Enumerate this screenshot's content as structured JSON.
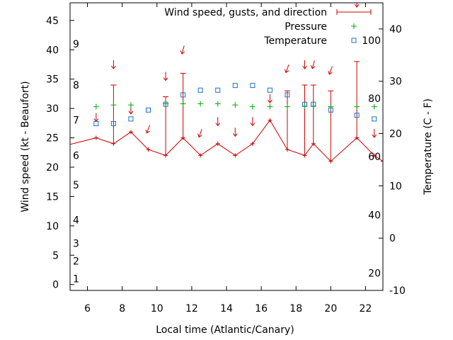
{
  "chart_data": {
    "type": "line",
    "xlabel": "Local time (Atlantic/Canary)",
    "ylabel": "Wind speed (kt - Beaufort)",
    "y2label": "Temperature (C - F)",
    "xlim": [
      5,
      23
    ],
    "ylim": [
      -1,
      48
    ],
    "y2lim": [
      -10,
      45
    ],
    "x_ticks": [
      6,
      8,
      10,
      12,
      14,
      16,
      18,
      20,
      22
    ],
    "y_ticks": [
      0,
      5,
      10,
      15,
      20,
      25,
      30,
      35,
      40,
      45
    ],
    "y2_ticks": [
      -10,
      0,
      10,
      20,
      30,
      40
    ],
    "beaufort_labels": [
      {
        "label": "1",
        "y": 1
      },
      {
        "label": "2",
        "y": 4
      },
      {
        "label": "3",
        "y": 7
      },
      {
        "label": "4",
        "y": 11
      },
      {
        "label": "5",
        "y": 17
      },
      {
        "label": "6",
        "y": 22
      },
      {
        "label": "7",
        "y": 28
      },
      {
        "label": "8",
        "y": 34
      },
      {
        "label": "9",
        "y": 41
      }
    ],
    "fahrenheit_labels": [
      {
        "label": "20",
        "c": -6.7
      },
      {
        "label": "40",
        "c": 4.4
      },
      {
        "label": "60",
        "c": 15.6
      },
      {
        "label": "80",
        "c": 26.7
      },
      {
        "label": "100",
        "c": 37.8
      }
    ],
    "legend": {
      "position": "top-right",
      "wind": "Wind speed, gusts, and direction",
      "pressure": "Pressure",
      "temperature": "Temperature"
    },
    "colors": {
      "wind": "#cc0000",
      "pressure": "#00aa00",
      "temperature": "#1e6ec8",
      "axis": "#000000"
    },
    "wind": {
      "x": [
        4.5,
        6.5,
        7.5,
        8.5,
        9.5,
        10.5,
        11.5,
        12.5,
        13.5,
        14.5,
        15.5,
        16.5,
        17.5,
        18.5,
        19,
        20,
        21.5,
        22.5,
        23
      ],
      "speed": [
        23.5,
        25,
        24,
        26,
        23,
        22,
        25,
        22,
        24,
        22,
        24,
        28,
        23,
        22,
        24,
        21,
        25,
        22,
        21
      ],
      "gust": [
        null,
        null,
        34,
        null,
        null,
        32,
        36,
        null,
        null,
        null,
        null,
        null,
        33,
        34,
        34,
        33,
        38,
        null,
        null
      ],
      "arrow_y": [
        null,
        28.5,
        37.5,
        29.8,
        26.5,
        35.5,
        40,
        25.8,
        27.8,
        26,
        27.8,
        31.7,
        36.8,
        37.5,
        37.5,
        36.5,
        48,
        25.8,
        null
      ],
      "arrow_dir": [
        null,
        0,
        0,
        0,
        20,
        0,
        15,
        20,
        0,
        0,
        0,
        0,
        20,
        0,
        15,
        20,
        0,
        0,
        null
      ]
    },
    "pressure": {
      "x": [
        6.5,
        7.5,
        8.5,
        10.5,
        11.5,
        12.5,
        13.5,
        14.5,
        15.5,
        16.5,
        17.5,
        18.5,
        19,
        20,
        21.5,
        22.5
      ],
      "y": [
        30.3,
        30.6,
        30.6,
        30.8,
        30.8,
        30.8,
        30.8,
        30.6,
        30.3,
        30.3,
        30.3,
        30.4,
        30.4,
        30.3,
        30.3,
        30.3
      ]
    },
    "temperature": {
      "x": [
        6.5,
        7.5,
        8.5,
        9.5,
        10.5,
        11.5,
        12.5,
        13.5,
        14.5,
        15.5,
        16.5,
        17.5,
        18.5,
        19,
        20,
        21.5,
        22.5
      ],
      "y": [
        21.9,
        21.9,
        22.8,
        24.5,
        25.6,
        27.4,
        28.3,
        28.3,
        29.2,
        29.2,
        28.3,
        27.4,
        25.6,
        25.6,
        24.5,
        23.5,
        22.8
      ]
    }
  }
}
